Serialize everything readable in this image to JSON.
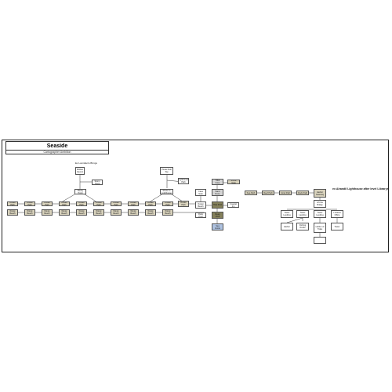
{
  "header": {
    "title": "Seaside",
    "subtitle": "Cartographer Ambition"
  },
  "annotations": {
    "left_group": "Ex Lomidian's Brings",
    "right_group": "ex Alrandil Lighthouse after level Librarys"
  },
  "nodes": {
    "top_row": [
      "Ocean Path",
      "Ocean Path",
      "Ocean Path",
      "Ocean Path",
      "Ocean Path",
      "Ocean Path",
      "Ocean Path",
      "Ocean Path",
      "Ocean Path",
      "Ocean Path",
      "Ocean Path"
    ],
    "bottom_row": [
      "Windy Beach",
      "Windy Beach",
      "Windy Beach",
      "Windy Beach",
      "Windy Beach",
      "Windy Beach",
      "Windy Beach",
      "Windy Beach",
      "Windy Beach",
      "Windy Beach",
      "Windy Beach"
    ],
    "branch_left": {
      "top": "Mildew Cavern",
      "mid": "Rocky Point",
      "side": "Storm Nook"
    },
    "branch_mid": {
      "top": "Pirate Atoll Top",
      "mid": "Route to Lighthouse",
      "side": "Lighthouse Path"
    },
    "ocean_edge": "Ocean Beach",
    "cave": {
      "top": "Tidal Cave",
      "upper": "Sand Dune",
      "lower": "Rock Pool",
      "dark1": "Tide Pool",
      "dark2": "Deep Pool",
      "blue": "Sea Grotto",
      "side_upper": "Cave Gate",
      "side_mid": "Coastal Inn"
    },
    "chain": [
      "Shore Gate",
      "Sea Path",
      "Reef Path",
      "Coral Path",
      "Dock Path"
    ],
    "end_node": "Harbor Gateway",
    "right_cluster": {
      "top": "Lift the Bridge",
      "mid": [
        "Tower Landing",
        "Tower Landing",
        "Tower Landing",
        "Lookout Office"
      ],
      "lower": [
        "Harbor",
        "Fishing Docks",
        "Harbor of Tides",
        "Tower"
      ],
      "foot": ""
    }
  }
}
